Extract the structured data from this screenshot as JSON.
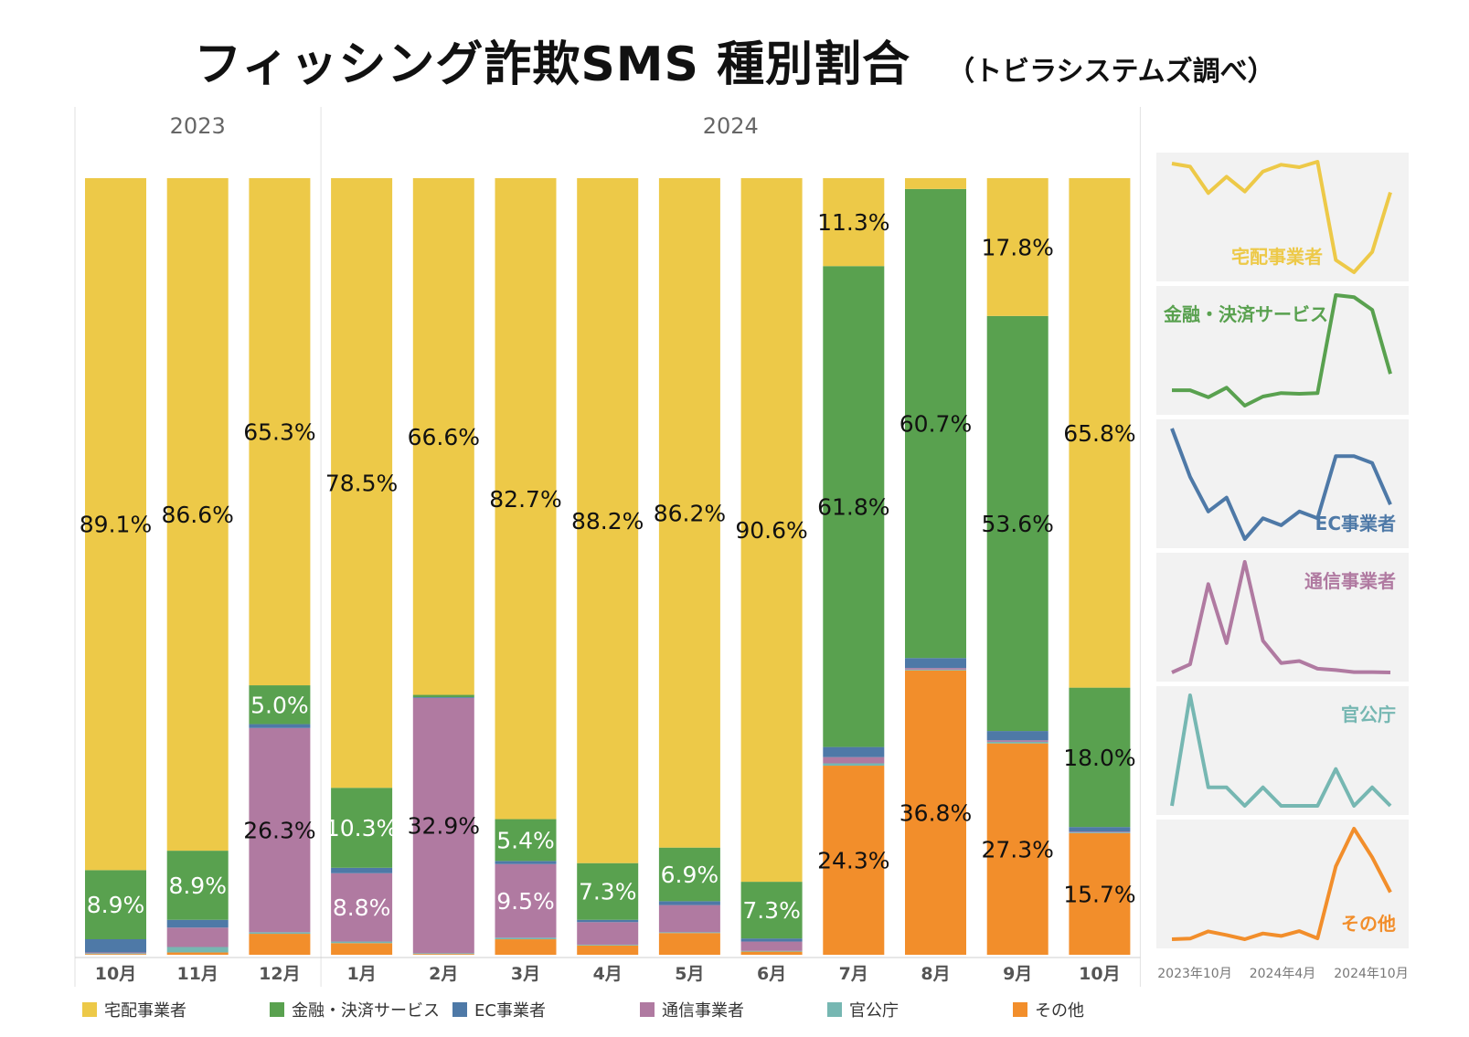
{
  "title": "フィッシング詐欺SMS 種別割合",
  "subtitle": "（トビラシステムズ調べ）",
  "chart_data": {
    "type": "bar",
    "stacked": true,
    "normalized_percent": true,
    "years": [
      {
        "label": "2023",
        "months": 3
      },
      {
        "label": "2024",
        "months": 10
      }
    ],
    "categories": [
      "10月",
      "11月",
      "12月",
      "1月",
      "2月",
      "3月",
      "4月",
      "5月",
      "6月",
      "7月",
      "8月",
      "9月",
      "10月"
    ],
    "series": [
      {
        "name": "その他",
        "color": "#F28E2B",
        "values": [
          0.1,
          0.3,
          2.7,
          1.5,
          0.1,
          2.0,
          1.2,
          2.8,
          0.4,
          24.3,
          36.8,
          27.3,
          15.7
        ]
      },
      {
        "name": "官公庁",
        "color": "#76B7B2",
        "values": [
          0.1,
          0.7,
          0.2,
          0.2,
          0.1,
          0.2,
          0.1,
          0.1,
          0.1,
          0.3,
          0.1,
          0.2,
          0.1
        ]
      },
      {
        "name": "通信事業者",
        "color": "#B07AA1",
        "values": [
          0.1,
          2.5,
          26.3,
          8.8,
          32.9,
          9.5,
          2.9,
          3.5,
          1.2,
          0.8,
          0.2,
          0.2,
          0.1
        ]
      },
      {
        "name": "EC事業者",
        "color": "#4E79A7",
        "values": [
          1.7,
          1.0,
          0.5,
          0.7,
          0.1,
          0.4,
          0.3,
          0.5,
          0.4,
          1.3,
          1.3,
          1.2,
          0.6
        ]
      },
      {
        "name": "金融・決済サービス",
        "color": "#59A14F",
        "values": [
          8.9,
          8.9,
          5.0,
          10.3,
          0.3,
          5.4,
          7.3,
          6.9,
          7.3,
          61.8,
          60.7,
          53.6,
          18.0
        ]
      },
      {
        "name": "宅配事業者",
        "color": "#EDC948",
        "values": [
          89.1,
          86.6,
          65.3,
          78.5,
          66.6,
          82.7,
          88.2,
          86.2,
          90.6,
          11.3,
          1.4,
          17.8,
          65.8
        ]
      }
    ],
    "data_labels": [
      {
        "series": "宅配事業者",
        "labels": [
          "89.1%",
          "86.6%",
          "65.3%",
          "78.5%",
          "66.6%",
          "82.7%",
          "88.2%",
          "86.2%",
          "90.6%",
          "11.3%",
          "",
          "17.8%",
          "65.8%"
        ]
      },
      {
        "series": "金融・決済サービス",
        "labels": [
          "8.9%",
          "8.9%",
          "5.0%",
          "10.3%",
          "",
          "5.4%",
          "7.3%",
          "6.9%",
          "7.3%",
          "61.8%",
          "60.7%",
          "53.6%",
          "18.0%"
        ]
      },
      {
        "series": "通信事業者",
        "labels": [
          "",
          "",
          "26.3%",
          "8.8%",
          "32.9%",
          "9.5%",
          "",
          "",
          "",
          "",
          "",
          "",
          ""
        ]
      },
      {
        "series": "その他",
        "labels": [
          "",
          "",
          "",
          "",
          "",
          "",
          "",
          "",
          "",
          "24.3%",
          "36.8%",
          "27.3%",
          "15.7%"
        ]
      }
    ],
    "legend_order": [
      "宅配事業者",
      "金融・決済サービス",
      "EC事業者",
      "通信事業者",
      "官公庁",
      "その他"
    ],
    "sparklines": {
      "x_tick_labels": [
        "2023年10月",
        "2024年4月",
        "2024年10月"
      ],
      "panels": [
        {
          "name": "宅配事業者",
          "label": "宅配事業者",
          "color": "#EDC948",
          "label_pos": "bottom-right"
        },
        {
          "name": "金融・決済サービス",
          "label": "金融・決済サービス",
          "color": "#59A14F",
          "label_pos": "top-left"
        },
        {
          "name": "EC事業者",
          "label": "EC事業者",
          "color": "#4E79A7",
          "label_pos": "bottom-right"
        },
        {
          "name": "通信事業者",
          "label": "通信事業者",
          "color": "#B07AA1",
          "label_pos": "top-right"
        },
        {
          "name": "官公庁",
          "label": "官公庁",
          "color": "#76B7B2",
          "label_pos": "top-right"
        },
        {
          "name": "その他",
          "label": "その他",
          "color": "#F28E2B",
          "label_pos": "bottom-right"
        }
      ]
    }
  }
}
